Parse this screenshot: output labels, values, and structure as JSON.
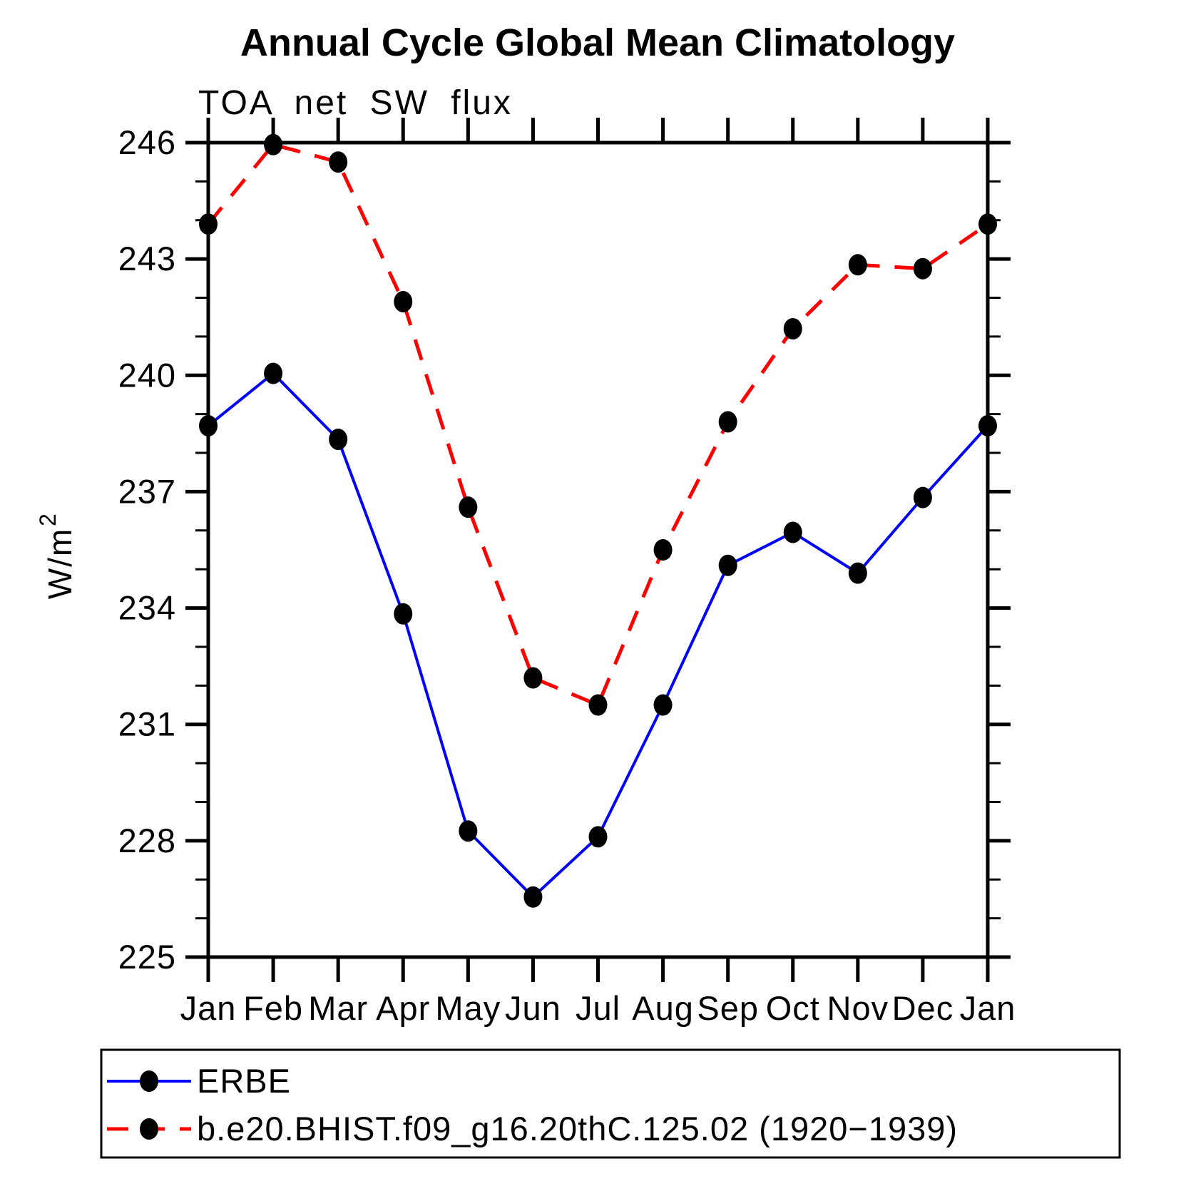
{
  "title": "Annual Cycle Global Mean Climatology",
  "chart_data": {
    "type": "line",
    "title": "Annual Cycle Global Mean Climatology",
    "subtitle": "TOA net SW flux",
    "ylabel": "W/m",
    "ylabel_exponent": "2",
    "x_tick_labels": [
      "Jan",
      "Feb",
      "Mar",
      "Apr",
      "May",
      "Jun",
      "Jul",
      "Aug",
      "Sep",
      "Oct",
      "Nov",
      "Dec",
      "Jan"
    ],
    "ylim": [
      225,
      246
    ],
    "ytick_major_step": 3,
    "ytick_minor_step": 1,
    "grid": false,
    "frame_color": "#000000",
    "marker_color": "#000000",
    "legend_position": "bottom box",
    "series": [
      {
        "name": "ERBE",
        "color": "#0000ff",
        "line_style": "solid",
        "marker": "filled-circle",
        "values": [
          238.7,
          240.05,
          238.35,
          233.85,
          228.25,
          226.55,
          228.1,
          231.5,
          235.1,
          235.95,
          234.9,
          236.85,
          238.7
        ]
      },
      {
        "name": "b.e20.BHIST.f09_g16.20thC.125.02 (1920−1939)",
        "color": "#ff0000",
        "line_style": "dashed",
        "marker": "filled-circle",
        "values": [
          243.9,
          245.95,
          245.5,
          241.9,
          236.6,
          232.2,
          231.5,
          235.5,
          238.8,
          241.2,
          242.85,
          242.75,
          243.9
        ]
      }
    ]
  }
}
